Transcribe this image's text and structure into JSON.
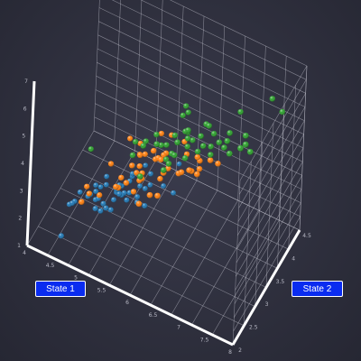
{
  "buttons": {
    "state1_label": "State 1",
    "state2_label": "State 2"
  },
  "colors": {
    "grid": "#c8c9d4",
    "axis": "#ffffff",
    "button_bg": "#0a2cf0",
    "series1": "#1f77b4",
    "series2": "#ff7f0e",
    "series3": "#2ca02c"
  },
  "chart_data": {
    "type": "scatter",
    "title": "",
    "xlabel": "",
    "ylabel": "",
    "zlabel": "",
    "grid": true,
    "xlim": [
      4,
      8
    ],
    "ylim": [
      2,
      4.5
    ],
    "zlim": [
      1,
      7
    ],
    "x_ticks": [
      "4",
      "4.5",
      "5",
      "5.5",
      "6",
      "6.5",
      "7",
      "7.5",
      "8"
    ],
    "y_ticks": [
      "2",
      "2.5",
      "3",
      "3.5",
      "4",
      "4.5"
    ],
    "z_ticks": [
      "1",
      "2",
      "3",
      "4",
      "5",
      "6",
      "7"
    ],
    "series": [
      {
        "color": "#1f77b4",
        "points": [
          [
            5.1,
            3.5,
            1.4
          ],
          [
            4.9,
            3.0,
            1.4
          ],
          [
            4.7,
            3.2,
            1.3
          ],
          [
            4.6,
            3.1,
            1.5
          ],
          [
            5.0,
            3.6,
            1.4
          ],
          [
            5.4,
            3.9,
            1.7
          ],
          [
            4.6,
            3.4,
            1.4
          ],
          [
            5.0,
            3.4,
            1.5
          ],
          [
            4.4,
            2.9,
            1.4
          ],
          [
            4.9,
            3.1,
            1.5
          ],
          [
            5.4,
            3.7,
            1.5
          ],
          [
            4.8,
            3.4,
            1.6
          ],
          [
            4.8,
            3.0,
            1.4
          ],
          [
            4.3,
            3.0,
            1.1
          ],
          [
            5.8,
            4.0,
            1.2
          ],
          [
            5.7,
            4.4,
            1.5
          ],
          [
            5.4,
            3.9,
            1.3
          ],
          [
            5.1,
            3.5,
            1.4
          ],
          [
            5.7,
            3.8,
            1.7
          ],
          [
            5.1,
            3.8,
            1.5
          ],
          [
            5.4,
            3.4,
            1.7
          ],
          [
            5.1,
            3.7,
            1.5
          ],
          [
            4.6,
            3.6,
            1.0
          ],
          [
            5.1,
            3.3,
            1.7
          ],
          [
            4.8,
            3.4,
            1.9
          ],
          [
            5.0,
            3.0,
            1.6
          ],
          [
            5.0,
            3.4,
            1.6
          ],
          [
            5.2,
            3.5,
            1.5
          ],
          [
            5.2,
            3.4,
            1.4
          ],
          [
            4.7,
            3.2,
            1.6
          ],
          [
            4.8,
            3.1,
            1.6
          ],
          [
            5.4,
            3.4,
            1.5
          ],
          [
            5.2,
            4.1,
            1.5
          ],
          [
            5.5,
            4.2,
            1.4
          ],
          [
            4.9,
            3.1,
            1.5
          ],
          [
            5.0,
            3.2,
            1.2
          ],
          [
            5.5,
            3.5,
            1.3
          ],
          [
            4.4,
            3.0,
            1.3
          ],
          [
            5.1,
            3.4,
            1.5
          ],
          [
            5.0,
            3.5,
            1.3
          ],
          [
            4.5,
            2.3,
            1.3
          ],
          [
            4.4,
            3.2,
            1.3
          ],
          [
            5.0,
            3.5,
            1.6
          ],
          [
            5.1,
            3.8,
            1.9
          ],
          [
            4.8,
            3.0,
            1.4
          ],
          [
            5.1,
            3.8,
            1.6
          ],
          [
            4.6,
            3.2,
            1.4
          ],
          [
            5.3,
            3.7,
            1.5
          ],
          [
            5.0,
            3.3,
            1.4
          ]
        ]
      },
      {
        "color": "#ff7f0e",
        "points": [
          [
            7.0,
            3.2,
            4.7
          ],
          [
            6.4,
            3.2,
            4.5
          ],
          [
            6.9,
            3.1,
            4.9
          ],
          [
            5.5,
            2.3,
            4.0
          ],
          [
            6.5,
            2.8,
            4.6
          ],
          [
            5.7,
            2.8,
            4.5
          ],
          [
            6.3,
            3.3,
            4.7
          ],
          [
            4.9,
            2.4,
            3.3
          ],
          [
            6.6,
            2.9,
            4.6
          ],
          [
            5.2,
            2.7,
            3.9
          ],
          [
            5.0,
            2.0,
            3.5
          ],
          [
            5.9,
            3.0,
            4.2
          ],
          [
            6.0,
            2.2,
            4.0
          ],
          [
            6.1,
            2.9,
            4.7
          ],
          [
            5.6,
            2.9,
            3.6
          ],
          [
            6.7,
            3.1,
            4.4
          ],
          [
            5.6,
            3.0,
            4.5
          ],
          [
            5.8,
            2.7,
            4.1
          ],
          [
            6.2,
            2.2,
            4.5
          ],
          [
            5.6,
            2.5,
            3.9
          ],
          [
            5.9,
            3.2,
            4.8
          ],
          [
            6.1,
            2.8,
            4.0
          ],
          [
            6.3,
            2.5,
            4.9
          ],
          [
            6.1,
            2.8,
            4.7
          ],
          [
            6.4,
            2.9,
            4.3
          ],
          [
            6.6,
            3.0,
            4.4
          ],
          [
            6.8,
            2.8,
            4.8
          ],
          [
            6.7,
            3.0,
            5.0
          ],
          [
            6.0,
            2.9,
            4.5
          ],
          [
            5.7,
            2.6,
            3.5
          ],
          [
            5.5,
            2.4,
            3.8
          ],
          [
            5.8,
            2.7,
            3.9
          ],
          [
            6.0,
            2.7,
            5.1
          ],
          [
            5.4,
            3.0,
            4.5
          ],
          [
            6.0,
            3.4,
            4.5
          ],
          [
            6.7,
            3.1,
            4.7
          ],
          [
            6.3,
            2.3,
            4.4
          ],
          [
            5.6,
            3.0,
            4.1
          ],
          [
            5.5,
            2.5,
            4.0
          ],
          [
            6.1,
            3.0,
            4.6
          ],
          [
            5.8,
            2.6,
            4.0
          ],
          [
            5.0,
            2.3,
            3.3
          ],
          [
            5.6,
            2.7,
            4.2
          ],
          [
            5.7,
            3.0,
            4.2
          ],
          [
            6.2,
            2.9,
            4.3
          ],
          [
            5.1,
            2.5,
            3.0
          ],
          [
            5.7,
            2.8,
            4.1
          ]
        ]
      },
      {
        "color": "#2ca02c",
        "points": [
          [
            6.3,
            3.3,
            6.0
          ],
          [
            5.8,
            2.7,
            5.1
          ],
          [
            7.1,
            3.0,
            5.9
          ],
          [
            6.3,
            2.9,
            5.6
          ],
          [
            6.5,
            3.0,
            5.8
          ],
          [
            7.6,
            3.0,
            6.6
          ],
          [
            4.9,
            2.5,
            4.5
          ],
          [
            7.3,
            2.9,
            6.3
          ],
          [
            6.7,
            2.5,
            5.8
          ],
          [
            7.2,
            3.6,
            6.1
          ],
          [
            6.5,
            3.2,
            5.1
          ],
          [
            6.4,
            2.7,
            5.3
          ],
          [
            6.8,
            3.0,
            5.5
          ],
          [
            5.7,
            2.5,
            5.0
          ],
          [
            5.8,
            2.8,
            5.1
          ],
          [
            6.4,
            3.2,
            5.3
          ],
          [
            6.5,
            3.0,
            5.5
          ],
          [
            7.7,
            3.8,
            6.7
          ],
          [
            7.7,
            2.6,
            6.9
          ],
          [
            6.0,
            2.2,
            5.0
          ],
          [
            6.9,
            3.2,
            5.7
          ],
          [
            5.6,
            2.8,
            4.9
          ],
          [
            7.7,
            2.8,
            6.7
          ],
          [
            6.3,
            2.7,
            4.9
          ],
          [
            6.7,
            3.3,
            5.7
          ],
          [
            7.2,
            3.2,
            6.0
          ],
          [
            6.2,
            2.8,
            4.8
          ],
          [
            6.1,
            3.0,
            4.9
          ],
          [
            6.4,
            2.8,
            5.6
          ],
          [
            7.2,
            3.0,
            5.8
          ],
          [
            7.4,
            2.8,
            6.1
          ],
          [
            7.9,
            3.8,
            6.4
          ],
          [
            6.4,
            2.8,
            5.6
          ],
          [
            6.3,
            2.8,
            5.1
          ],
          [
            6.1,
            2.6,
            5.6
          ],
          [
            7.7,
            3.0,
            6.1
          ],
          [
            6.3,
            3.4,
            5.6
          ],
          [
            6.4,
            3.1,
            5.5
          ],
          [
            6.0,
            3.0,
            4.8
          ],
          [
            6.9,
            3.1,
            5.4
          ],
          [
            6.7,
            3.1,
            5.6
          ],
          [
            6.9,
            3.1,
            5.1
          ],
          [
            6.8,
            3.2,
            5.9
          ],
          [
            6.7,
            3.3,
            5.7
          ],
          [
            6.7,
            3.0,
            5.2
          ],
          [
            6.3,
            2.5,
            5.0
          ],
          [
            6.5,
            3.0,
            5.2
          ],
          [
            6.2,
            3.4,
            5.4
          ],
          [
            5.9,
            3.0,
            5.1
          ]
        ]
      }
    ]
  }
}
